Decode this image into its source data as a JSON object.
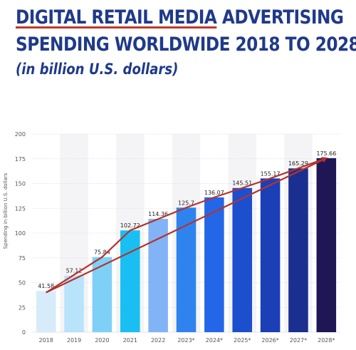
{
  "title": {
    "line1_underlined": "DIGITAL RETAIL MEDIA",
    "line1_rest": " ADVERTISING",
    "line2": "SPENDING WORLDWIDE 2018 TO 2028",
    "subtitle": "(in billion U.S. dollars)"
  },
  "chart_data": {
    "type": "bar",
    "categories": [
      "2018",
      "2019",
      "2020",
      "2021",
      "2022",
      "2023*",
      "2024*",
      "2025*",
      "2026*",
      "2027*",
      "2028*"
    ],
    "values": [
      41.58,
      57.12,
      75.84,
      102.72,
      114.36,
      125.7,
      136.07,
      145.51,
      155.17,
      165.29,
      175.66
    ],
    "value_labels": [
      "41.58",
      "57.12",
      "75.84",
      "102.72",
      "114.36",
      "125.7",
      "136.07",
      "145.51",
      "155.17",
      "165.29",
      "175.66"
    ],
    "ylabel": "Spending in billion U.S. dollars",
    "xlabel": "",
    "ylim": [
      0,
      200
    ],
    "yticks": [
      0,
      25,
      50,
      75,
      100,
      125,
      150,
      175,
      200
    ],
    "grid": true,
    "bar_colors": [
      "#d7ecfa",
      "#b9e2fb",
      "#7fd0f7",
      "#19bff3",
      "#83b3f7",
      "#2f83ee",
      "#2466e8",
      "#1c4fce",
      "#1b3fb6",
      "#1a2f8f",
      "#1f1656"
    ],
    "annotations": {
      "arrow_color": "#b5332d",
      "arrow_polyline_years": [
        "2018",
        "2020",
        "2021",
        "2023*",
        "2024*",
        "2025*",
        "2026*",
        "2028*"
      ],
      "arrow_polyline_values": [
        40,
        75.84,
        102.72,
        125.7,
        136.07,
        145.51,
        155.17,
        175.66
      ],
      "trend_line_start": [
        "2018",
        40
      ],
      "trend_line_end": [
        "2028*",
        175.66
      ]
    }
  }
}
